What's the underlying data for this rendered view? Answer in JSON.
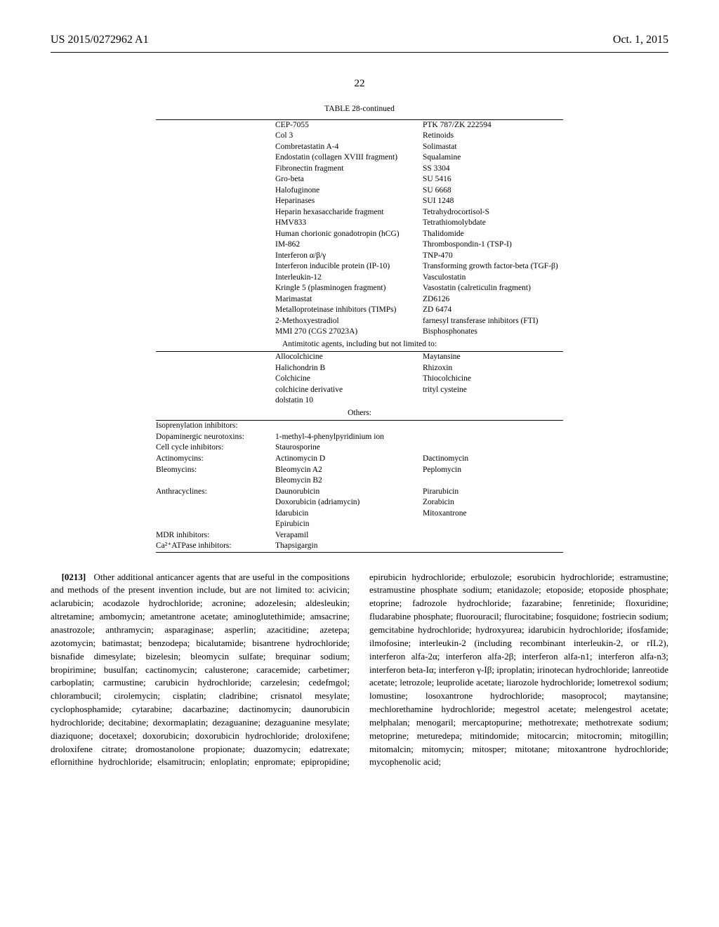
{
  "header": {
    "pub_number": "US 2015/0272962 A1",
    "pub_date": "Oct. 1, 2015"
  },
  "page_number": "22",
  "table": {
    "caption": "TABLE 28-continued",
    "block1": [
      [
        "",
        "CEP-7055",
        "PTK 787/ZK 222594"
      ],
      [
        "",
        "Col 3",
        "Retinoids"
      ],
      [
        "",
        "Combretastatin A-4",
        "Solimastat"
      ],
      [
        "",
        "Endostatin (collagen XVIII fragment)",
        "Squalamine"
      ],
      [
        "",
        "Fibronectin fragment",
        "SS 3304"
      ],
      [
        "",
        "Gro-beta",
        "SU 5416"
      ],
      [
        "",
        "Halofuginone",
        "SU 6668"
      ],
      [
        "",
        "Heparinases",
        "SUI 1248"
      ],
      [
        "",
        "Heparin hexasaccharide fragment",
        "Tetrahydrocortisol-S"
      ],
      [
        "",
        "HMV833",
        "Tetrathiomolybdate"
      ],
      [
        "",
        "Human chorionic gonadotropin (hCG)",
        "Thalidomide"
      ],
      [
        "",
        "IM-862",
        "Thrombospondin-1 (TSP-I)"
      ],
      [
        "",
        "Interferon α/β/γ",
        "TNP-470"
      ],
      [
        "",
        "Interferon inducible protein (IP-10)",
        "Transforming growth factor-beta (TGF-β)"
      ],
      [
        "",
        "Interleukin-12",
        "Vasculostatin"
      ],
      [
        "",
        "Kringle 5 (plasminogen fragment)",
        "Vasostatin (calreticulin fragment)"
      ],
      [
        "",
        "Marimastat",
        "ZD6126"
      ],
      [
        "",
        "Metalloproteinase inhibitors (TIMPs)",
        "ZD 6474"
      ],
      [
        "",
        "2-Methoxyestradiol",
        "farnesyl transferase inhibitors (FTI)"
      ],
      [
        "",
        "MMI 270 (CGS 27023A)",
        "Bisphosphonates"
      ]
    ],
    "section2_title": "Antimitotic agents, including but not limited to:",
    "block2": [
      [
        "",
        "Allocolchicine",
        "Maytansine"
      ],
      [
        "",
        "Halichondrin B",
        "Rhizoxin"
      ],
      [
        "",
        "Colchicine",
        "Thiocolchicine"
      ],
      [
        "",
        "colchicine derivative",
        "trityl cysteine"
      ],
      [
        "",
        "dolstatin 10",
        ""
      ]
    ],
    "section3_title": "Others:",
    "block3": [
      [
        "Isoprenylation inhibitors:",
        "",
        ""
      ],
      [
        "Dopaminergic neurotoxins:",
        "1-methyl-4-phenylpyridinium ion",
        ""
      ],
      [
        "Cell cycle inhibitors:",
        "Staurosporine",
        ""
      ],
      [
        "Actinomycins:",
        "Actinomycin D",
        "Dactinomycin"
      ],
      [
        "Bleomycins:",
        "Bleomycin A2",
        "Peplomycin"
      ],
      [
        "",
        "Bleomycin B2",
        ""
      ],
      [
        "Anthracyclines:",
        "Daunorubicin",
        "Pirarubicin"
      ],
      [
        "",
        "Doxorubicin (adriamycin)",
        "Zorabicin"
      ],
      [
        "",
        "Idarubicin",
        "Mitoxantrone"
      ],
      [
        "",
        "Epirubicin",
        ""
      ],
      [
        "MDR inhibitors:",
        "Verapamil",
        ""
      ],
      [
        "Ca²⁺ATPase inhibitors:",
        "Thapsigargin",
        ""
      ]
    ]
  },
  "body": {
    "para_num": "[0213]",
    "para_lead": "Other additional anticancer agents that are useful in the compositions and methods of the present invention include, but are not limited to: ",
    "para_text": "acivicin; aclarubicin; acodazole hydrochloride; acronine; adozelesin; aldesleukin; altretamine; ambomycin; ametantrone acetate; aminoglutethimide; amsacrine; anastrozole; anthramycin; asparaginase; asperlin; azacitidine; azetepa; azotomycin; batimastat; benzodepa; bicalutamide; bisantrene hydrochloride; bisnafide dimesylate; bizelesin; bleomycin sulfate; brequinar sodium; bropirimine; busulfan; cactinomycin; calusterone; caracemide; carbetimer; carboplatin; carmustine; carubicin hydrochloride; carzelesin; cedefmgol; chlorambucil; cirolemycin; cisplatin; cladribine; crisnatol mesylate; cyclophosphamide; cytarabine; dacarbazine; dactinomycin; daunorubicin hydrochloride; decitabine; dexormaplatin; dezaguanine; dezaguanine mesylate; diaziquone; docetaxel; doxorubicin; doxorubicin hydrochloride; droloxifene; droloxifene citrate; dromostanolone propionate; duazomycin; edatrexate; eflornithine hydrochloride; elsamitrucin; enloplatin; enpromate; epipropidine; epirubicin hydrochloride; erbulozole; esorubicin hydrochloride; estramustine; estramustine phosphate sodium; etanidazole; etoposide; etoposide phosphate; etoprine; fadrozole hydrochloride; fazarabine; fenretinide; floxuridine; fludarabine phosphate; fluorouracil; flurocitabine; fosquidone; fostriecin sodium; gemcitabine hydrochloride; hydroxyurea; idarubicin hydrochloride; ifosfamide; ilmofosine; interleukin-2 (including recombinant interleukin-2, or rIL2), interferon alfa-2α; interferon alfa-2β; interferon alfa-n1; interferon alfa-n3; interferon beta-Iα; interferon γ-Iβ; iproplatin; irinotecan hydrochloride; lanreotide acetate; letrozole; leuprolide acetate; liarozole hydrochloride; lometrexol sodium; lomustine; losoxantrone hydrochloride; masoprocol; maytansine; mechlorethamine hydrochloride; megestrol acetate; melengestrol acetate; melphalan; menogaril; mercaptopurine; methotrexate; methotrexate sodium; metoprine; meturedepa; mitindomide; mitocarcin; mitocromin; mitogillin; mitomalcin; mitomycin; mitosper; mitotane; mitoxantrone hydrochloride; mycophenolic acid;"
  }
}
